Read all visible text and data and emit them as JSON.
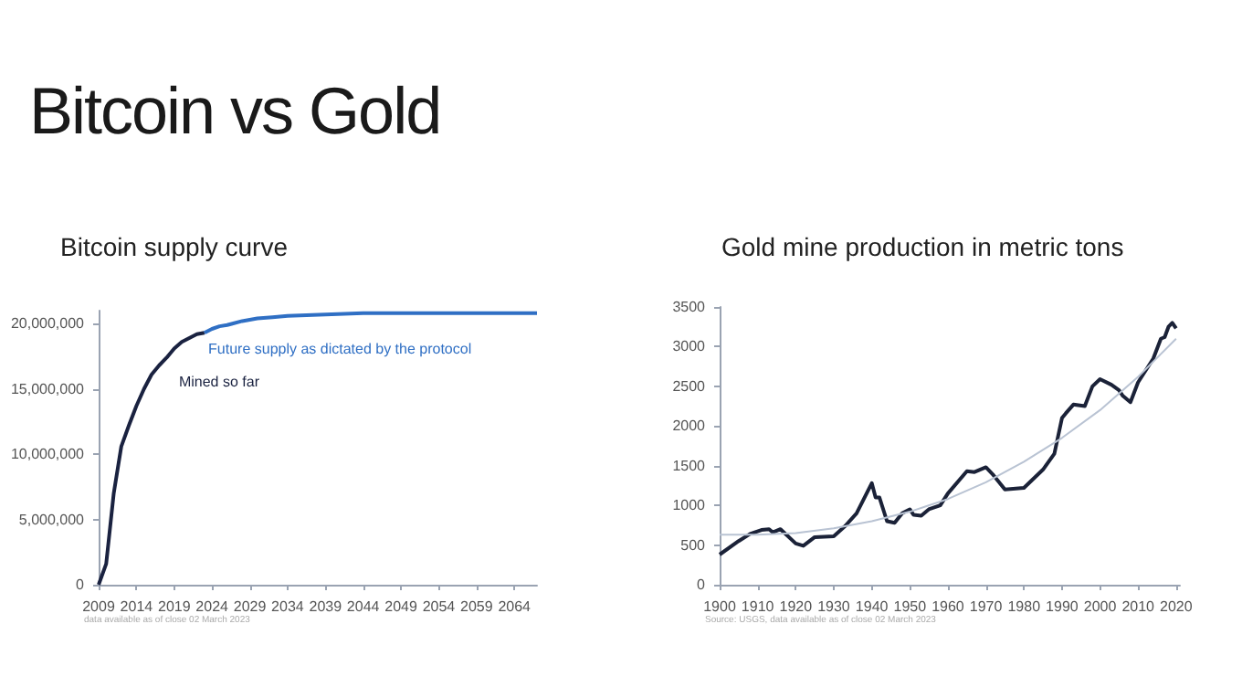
{
  "chart_data": [
    {
      "type": "line",
      "title": "Bitcoin vs Gold",
      "subtitle": "Bitcoin supply curve",
      "marker": "none",
      "xlim": [
        2009,
        2067
      ],
      "xticks": [
        2009,
        2014,
        2019,
        2024,
        2029,
        2034,
        2039,
        2044,
        2049,
        2054,
        2059,
        2064
      ],
      "ylim": [
        0,
        21000000
      ],
      "yticks": [
        0,
        {
          "value": 5000000,
          "label": "5,000,000"
        },
        {
          "value": 10000000,
          "label": "10,000,000"
        },
        {
          "value": 15000000,
          "label": "15,000,000"
        },
        {
          "value": 20000000,
          "label": "20,000,000"
        }
      ],
      "annotations": [
        "data available as of close 02 March 2023"
      ],
      "series": [
        {
          "name": "Mined so far",
          "color": "#1a2240",
          "x": [
            2009,
            2010,
            2011,
            2012,
            2013,
            2014,
            2015,
            2016,
            2017,
            2018,
            2019,
            2020,
            2021,
            2022,
            2023
          ],
          "values": [
            0,
            1600000,
            7000000,
            10600000,
            12200000,
            13700000,
            15000000,
            16100000,
            16800000,
            17400000,
            18100000,
            18600000,
            18900000,
            19200000,
            19300000
          ]
        },
        {
          "name": "Future supply as dictated by the protocol",
          "color": "#2f6fc4",
          "x": [
            2023,
            2024,
            2025,
            2026,
            2028,
            2030,
            2032,
            2034,
            2039,
            2044,
            2050,
            2056,
            2067
          ],
          "values": [
            19300000,
            19600000,
            19800000,
            19900000,
            20200000,
            20400000,
            20500000,
            20600000,
            20700000,
            20800000,
            20800000,
            20800000,
            20800000
          ]
        }
      ]
    },
    {
      "type": "line",
      "title": "Gold mine production in metric tons",
      "marker": "none",
      "xlim": [
        1900,
        2021
      ],
      "xticks": [
        1900,
        1910,
        1920,
        1930,
        1940,
        1950,
        1960,
        1970,
        1980,
        1990,
        2000,
        2010,
        2020
      ],
      "ylim": [
        0,
        3500
      ],
      "yticks": [
        0,
        500,
        1000,
        1500,
        2000,
        2500,
        3000,
        3500
      ],
      "annotations": [
        "Source: USGS, data available as of close 02 March 2023"
      ],
      "series": [
        {
          "color": "#1b2238",
          "x": [
            1900,
            1905,
            1908,
            1911,
            1913,
            1914,
            1916,
            1920,
            1922,
            1925,
            1930,
            1933,
            1936,
            1938,
            1940,
            1941,
            1942,
            1944,
            1946,
            1948,
            1950,
            1951,
            1953,
            1955,
            1958,
            1960,
            1965,
            1967,
            1970,
            1972,
            1975,
            1980,
            1985,
            1988,
            1990,
            1991,
            1993,
            1996,
            1998,
            2000,
            2003,
            2005,
            2006,
            2008,
            2010,
            2012,
            2014,
            2016,
            2017,
            2018,
            2019,
            2020
          ],
          "values": [
            380,
            550,
            640,
            690,
            700,
            660,
            700,
            520,
            490,
            600,
            610,
            740,
            900,
            1090,
            1280,
            1100,
            1100,
            800,
            780,
            900,
            950,
            880,
            870,
            950,
            1000,
            1150,
            1430,
            1420,
            1480,
            1380,
            1200,
            1220,
            1450,
            1650,
            2100,
            2160,
            2270,
            2250,
            2500,
            2590,
            2520,
            2450,
            2380,
            2300,
            2550,
            2700,
            2850,
            3100,
            3120,
            3250,
            3300,
            3230
          ]
        },
        {
          "color": "#b9c3d3",
          "x": [
            1900,
            1910,
            1920,
            1930,
            1940,
            1950,
            1960,
            1970,
            1980,
            1990,
            2000,
            2010,
            2020
          ],
          "values": [
            630,
            630,
            650,
            710,
            800,
            920,
            1080,
            1290,
            1550,
            1850,
            2200,
            2620,
            3100
          ]
        }
      ]
    }
  ]
}
